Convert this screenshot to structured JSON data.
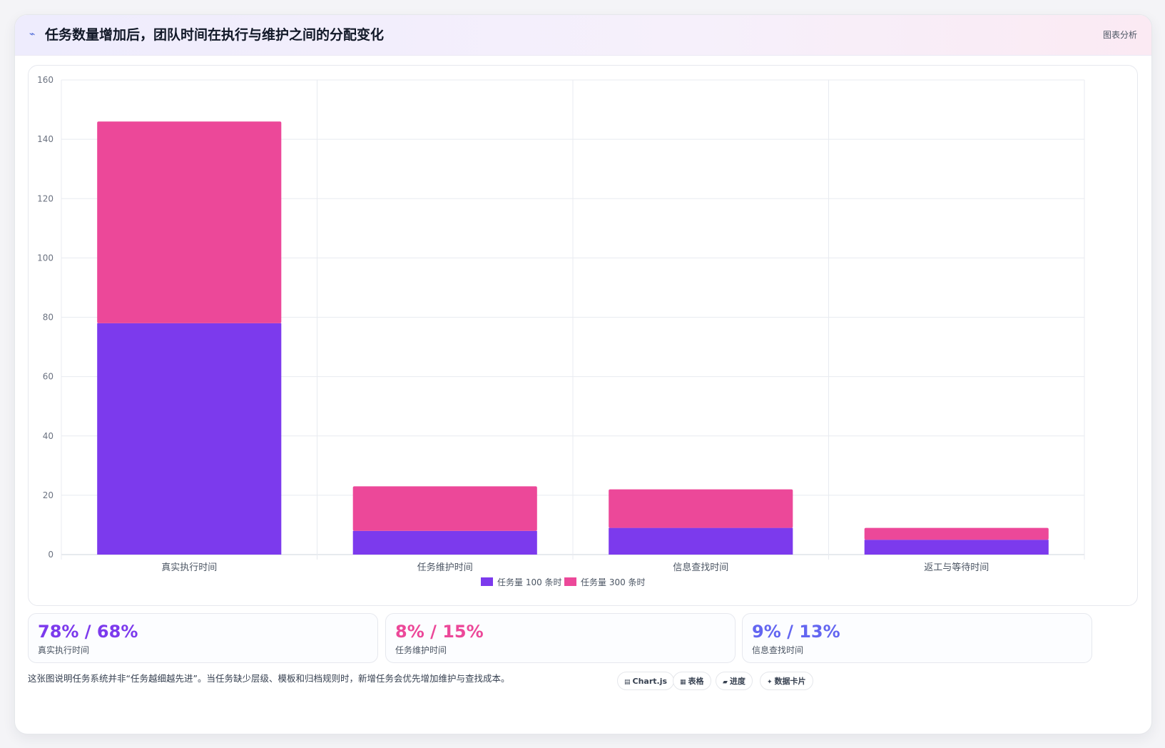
{
  "header": {
    "title": "任务数量增加后，团队时间在执行与维护之间的分配变化",
    "tag": "图表分析",
    "icon": "trend-icon"
  },
  "chart_data": {
    "type": "bar",
    "stacked": true,
    "title": "",
    "xlabel": "",
    "ylabel": "",
    "categories": [
      "真实执行时间",
      "任务维护时间",
      "信息查找时间",
      "返工与等待时间"
    ],
    "series": [
      {
        "name": "任务量 100 条时",
        "values": [
          78,
          8,
          9,
          5
        ],
        "color": "#7c3aed"
      },
      {
        "name": "任务量 300 条时",
        "values": [
          68,
          15,
          13,
          4
        ],
        "color": "#ec4899"
      }
    ],
    "ylim": [
      0,
      160
    ],
    "yticks": [
      0,
      20,
      40,
      60,
      80,
      100,
      120,
      140,
      160
    ],
    "grid": true,
    "legend": "bottom"
  },
  "stats": [
    {
      "value": "78% / 68%",
      "label": "真实执行时间",
      "color": "#7c3aed"
    },
    {
      "value": "8% / 15%",
      "label": "任务维护时间",
      "color": "#ec4899"
    },
    {
      "value": "9% / 13%",
      "label": "信息查找时间",
      "color": "#6366f1"
    }
  ],
  "footnote": "这张图说明任务系统并非“任务越细越先进”。当任务缺少层级、模板和归档规则时，新增任务会优先增加维护与查找成本。",
  "badges": [
    {
      "label": "Chart.js",
      "icon": "chart-icon"
    },
    {
      "label": "表格",
      "icon": "table-icon"
    },
    {
      "label": "进度",
      "icon": "progress-icon"
    },
    {
      "label": "数据卡片",
      "icon": "sparkle-icon"
    }
  ]
}
